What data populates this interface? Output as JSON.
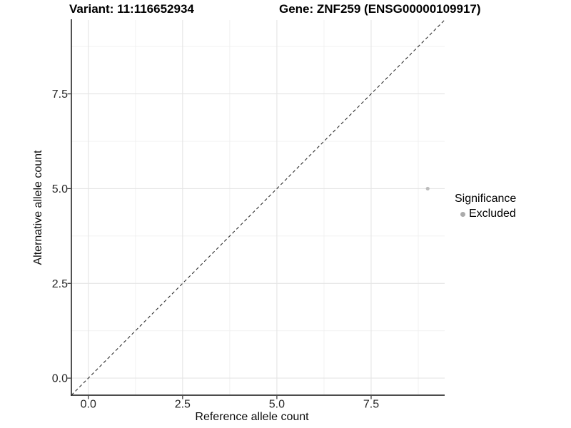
{
  "chart_data": {
    "type": "scatter",
    "title_left": "Variant: 11:116652934",
    "title_right": "Gene: ZNF259 (ENSG00000109917)",
    "xlabel": "Reference allele count",
    "ylabel": "Alternative allele count",
    "xlim": [
      -0.45,
      9.45
    ],
    "ylim": [
      -0.45,
      9.45
    ],
    "x_ticks": [
      0,
      2.5,
      5,
      7.5
    ],
    "x_tick_labels": [
      "0.0",
      "2.5",
      "5.0",
      "7.5"
    ],
    "y_ticks": [
      0,
      2.5,
      5,
      7.5
    ],
    "y_tick_labels": [
      "0.0",
      "2.5",
      "5.0",
      "7.5"
    ],
    "x_minor_ticks": [
      1.25,
      3.75,
      6.25,
      8.75
    ],
    "y_minor_ticks": [
      1.25,
      3.75,
      6.25,
      8.75
    ],
    "grid": "major+minor",
    "series": [
      {
        "name": "Excluded",
        "color": "#bcbcbc",
        "point_radius": 2.6,
        "points": [
          [
            9,
            5
          ]
        ]
      }
    ],
    "reference_line": {
      "kind": "identity (y = x)",
      "style": "dashed",
      "color": "#303030"
    },
    "legend": {
      "title": "Significance",
      "position": "right",
      "entries": [
        {
          "label": "Excluded",
          "color": "#ababab"
        }
      ]
    },
    "panel": {
      "background": "#ffffff",
      "grid_major_color": "#e5e5e5",
      "grid_minor_color": "#f0f0f0",
      "axis_line_color": "#333333",
      "tick_color": "#333333",
      "tick_label_color": "#262626"
    }
  }
}
